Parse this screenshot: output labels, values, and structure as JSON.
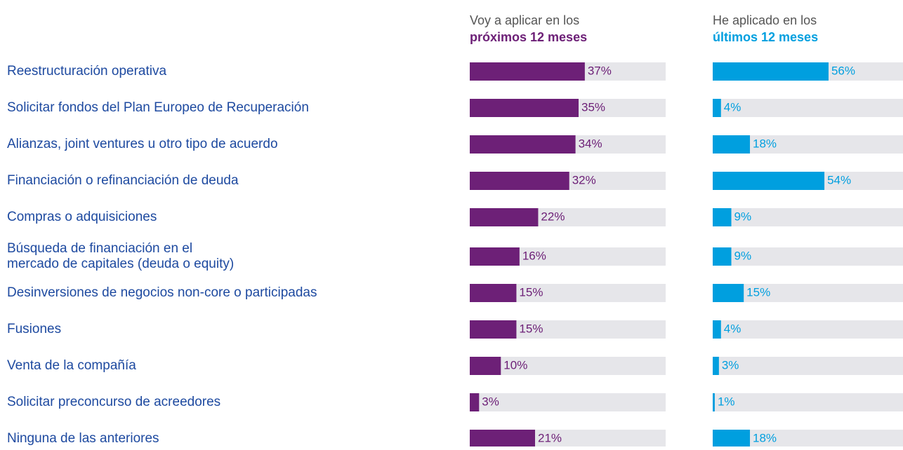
{
  "chart_data": {
    "type": "bar",
    "categories": [
      "Reestructuración operativa",
      "Solicitar fondos del Plan Europeo de Recuperación",
      "Alianzas, joint ventures u otro tipo de acuerdo",
      "Financiación o refinanciación de deuda",
      "Compras o adquisiciones",
      "Búsqueda de financiación en el\nmercado de capitales (deuda o equity)",
      "Desinversiones de negocios non-core o participadas",
      "Fusiones",
      "Venta de la compañía",
      "Solicitar preconcurso de acreedores",
      "Ninguna de las anteriores"
    ],
    "series": [
      {
        "name": "Voy a aplicar en los",
        "name_bold": "próximos 12 meses",
        "color": "#6d2077",
        "xlim": [
          0,
          63
        ],
        "values": [
          37,
          35,
          34,
          32,
          22,
          16,
          15,
          15,
          10,
          3,
          21
        ],
        "value_labels": [
          "37%",
          "35%",
          "34%",
          "32%",
          "22%",
          "16%",
          "15%",
          "15%",
          "10%",
          "3%",
          "21%"
        ]
      },
      {
        "name": "He aplicado en los",
        "name_bold": "últimos 12 meses",
        "color": "#009fdf",
        "xlim": [
          0,
          92
        ],
        "values": [
          56,
          4,
          18,
          54,
          9,
          9,
          15,
          4,
          3,
          1,
          18
        ],
        "value_labels": [
          "56%",
          "4%",
          "18%",
          "54%",
          "9%",
          "9%",
          "15%",
          "4%",
          "3%",
          "1%",
          "18%"
        ]
      }
    ]
  }
}
